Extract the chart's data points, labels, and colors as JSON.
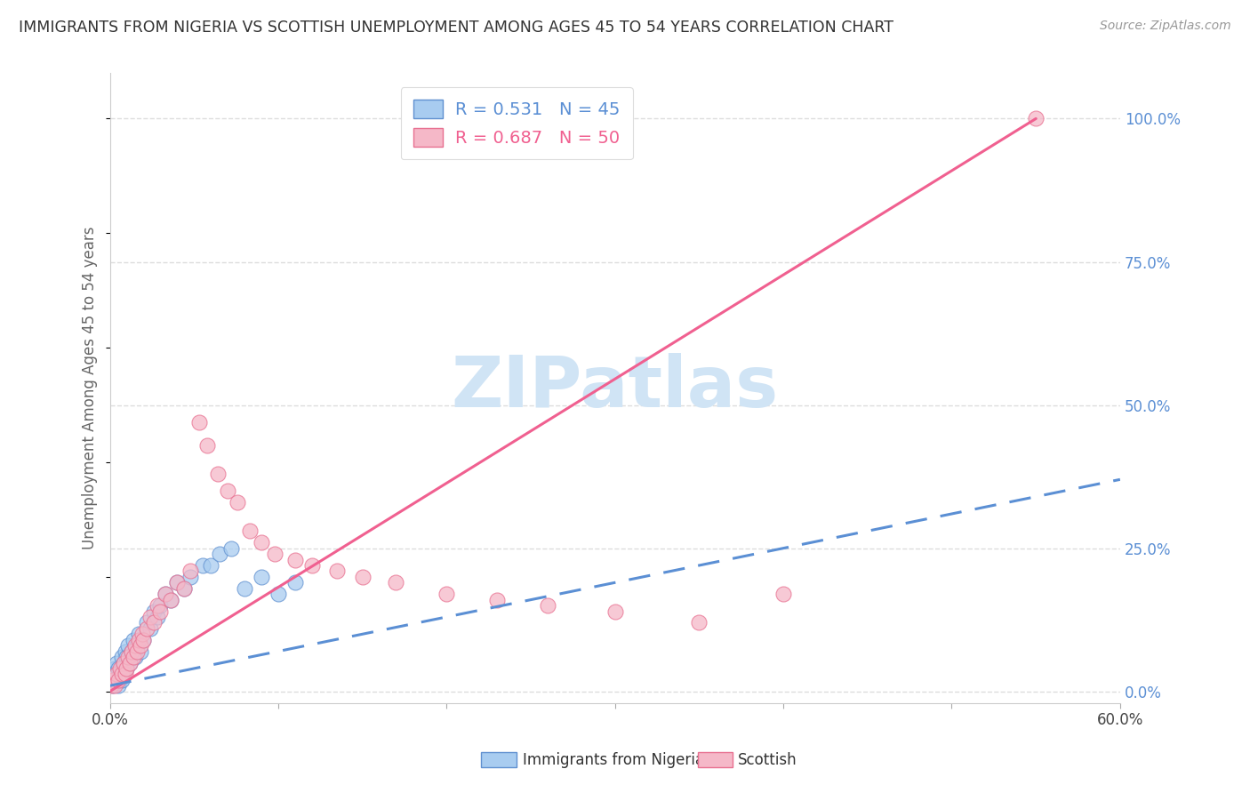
{
  "title": "IMMIGRANTS FROM NIGERIA VS SCOTTISH UNEMPLOYMENT AMONG AGES 45 TO 54 YEARS CORRELATION CHART",
  "source": "Source: ZipAtlas.com",
  "ylabel": "Unemployment Among Ages 45 to 54 years",
  "ytick_labels": [
    "0.0%",
    "25.0%",
    "50.0%",
    "75.0%",
    "100.0%"
  ],
  "ytick_values": [
    0,
    0.25,
    0.5,
    0.75,
    1.0
  ],
  "xlim": [
    0,
    0.6
  ],
  "ylim": [
    -0.02,
    1.08
  ],
  "legend_blue_label": "Immigrants from Nigeria",
  "legend_pink_label": "Scottish",
  "legend_blue_R": "R = 0.531",
  "legend_blue_N": "N = 45",
  "legend_pink_R": "R = 0.687",
  "legend_pink_N": "N = 50",
  "blue_scatter_x": [
    0.001,
    0.002,
    0.002,
    0.003,
    0.003,
    0.004,
    0.004,
    0.005,
    0.005,
    0.006,
    0.006,
    0.007,
    0.007,
    0.008,
    0.008,
    0.009,
    0.01,
    0.01,
    0.011,
    0.012,
    0.013,
    0.014,
    0.015,
    0.016,
    0.017,
    0.018,
    0.02,
    0.022,
    0.024,
    0.026,
    0.028,
    0.03,
    0.033,
    0.036,
    0.04,
    0.044,
    0.048,
    0.055,
    0.06,
    0.065,
    0.072,
    0.08,
    0.09,
    0.1,
    0.11
  ],
  "blue_scatter_y": [
    0.02,
    0.03,
    0.01,
    0.04,
    0.02,
    0.03,
    0.05,
    0.01,
    0.04,
    0.02,
    0.03,
    0.06,
    0.02,
    0.05,
    0.03,
    0.07,
    0.04,
    0.06,
    0.08,
    0.05,
    0.07,
    0.09,
    0.06,
    0.08,
    0.1,
    0.07,
    0.09,
    0.12,
    0.11,
    0.14,
    0.13,
    0.15,
    0.17,
    0.16,
    0.19,
    0.18,
    0.2,
    0.22,
    0.22,
    0.24,
    0.25,
    0.18,
    0.2,
    0.17,
    0.19
  ],
  "pink_scatter_x": [
    0.001,
    0.002,
    0.003,
    0.004,
    0.005,
    0.006,
    0.007,
    0.008,
    0.009,
    0.01,
    0.011,
    0.012,
    0.013,
    0.014,
    0.015,
    0.016,
    0.017,
    0.018,
    0.019,
    0.02,
    0.022,
    0.024,
    0.026,
    0.028,
    0.03,
    0.033,
    0.036,
    0.04,
    0.044,
    0.048,
    0.053,
    0.058,
    0.064,
    0.07,
    0.076,
    0.083,
    0.09,
    0.098,
    0.11,
    0.12,
    0.135,
    0.15,
    0.17,
    0.2,
    0.23,
    0.26,
    0.3,
    0.35,
    0.4,
    0.55
  ],
  "pink_scatter_y": [
    0.01,
    0.02,
    0.01,
    0.03,
    0.02,
    0.04,
    0.03,
    0.05,
    0.03,
    0.04,
    0.06,
    0.05,
    0.07,
    0.06,
    0.08,
    0.07,
    0.09,
    0.08,
    0.1,
    0.09,
    0.11,
    0.13,
    0.12,
    0.15,
    0.14,
    0.17,
    0.16,
    0.19,
    0.18,
    0.21,
    0.47,
    0.43,
    0.38,
    0.35,
    0.33,
    0.28,
    0.26,
    0.24,
    0.23,
    0.22,
    0.21,
    0.2,
    0.19,
    0.17,
    0.16,
    0.15,
    0.14,
    0.12,
    0.17,
    1.0
  ],
  "blue_line_x": [
    0.0,
    0.6
  ],
  "blue_line_y": [
    0.01,
    0.37
  ],
  "pink_line_x": [
    0.0,
    0.55
  ],
  "pink_line_y": [
    0.0,
    1.0
  ],
  "blue_color": "#A8CCF0",
  "pink_color": "#F5B8C8",
  "blue_line_color": "#5B8FD4",
  "pink_line_color": "#F06090",
  "blue_scatter_edge": "#6090D0",
  "pink_scatter_edge": "#E87090",
  "watermark_color": "#D0E4F5",
  "grid_color": "#DDDDDD",
  "background_color": "#FFFFFF"
}
